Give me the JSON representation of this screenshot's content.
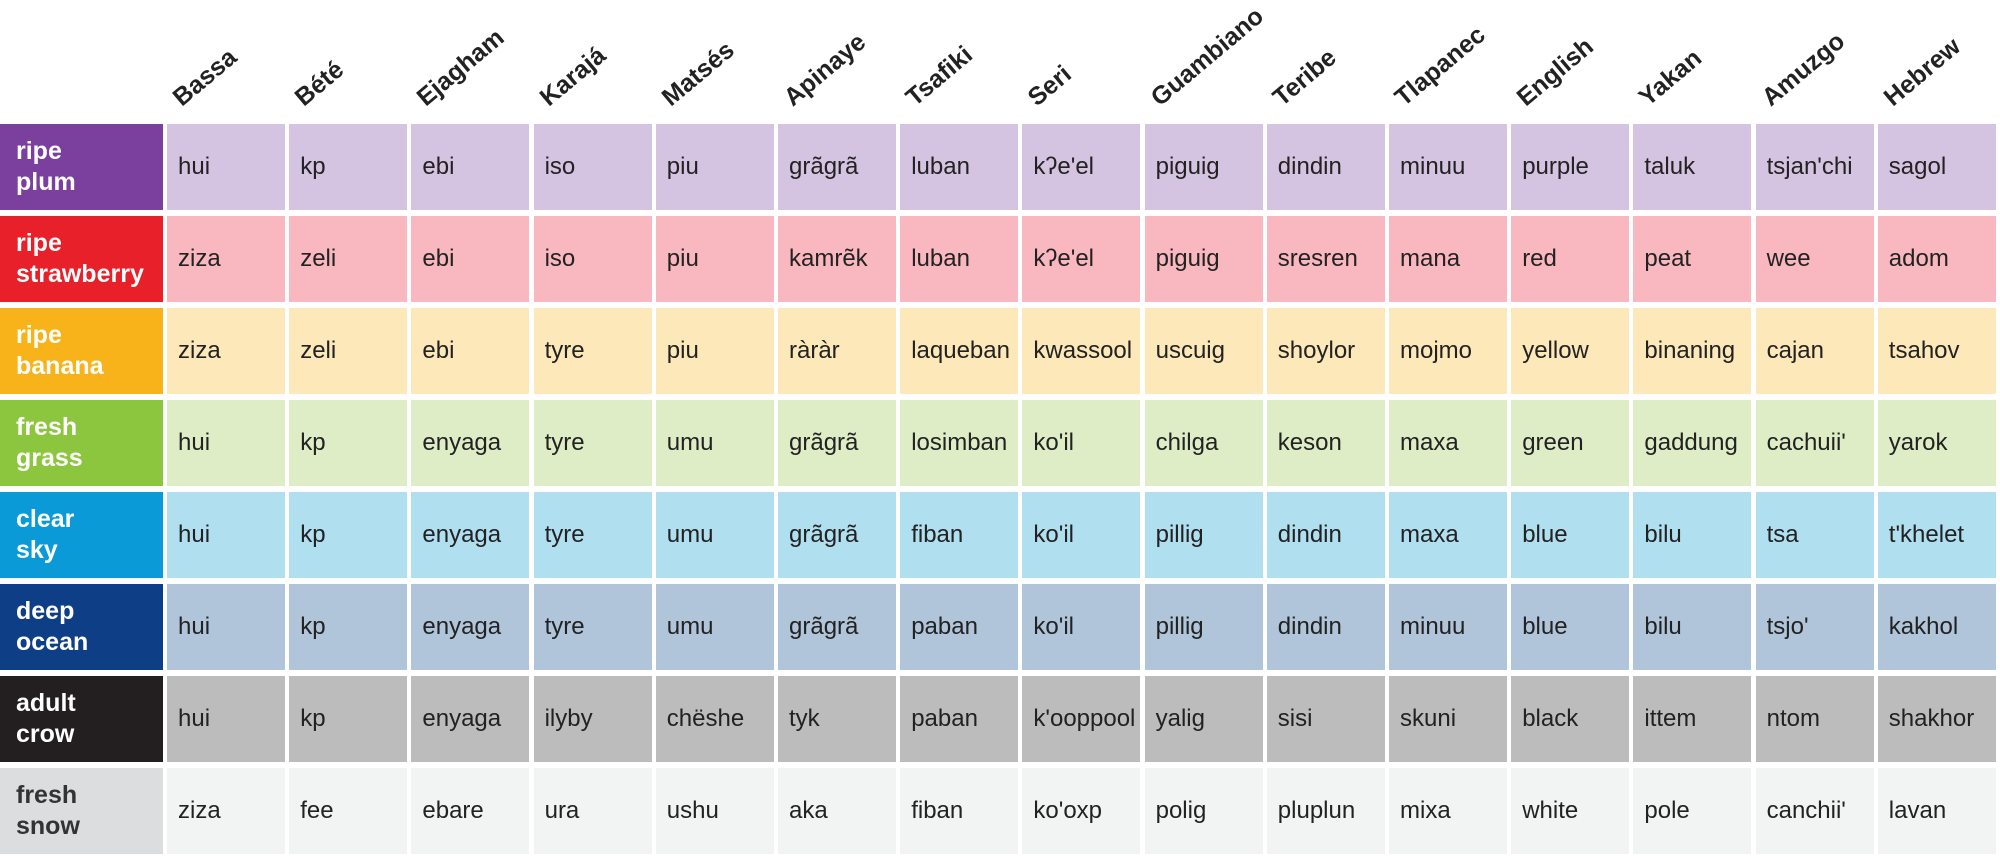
{
  "languages": [
    "Bassa",
    "Bété",
    "Ejagham",
    "Karajá",
    "Matsés",
    "Apinaye",
    "Tsafiki",
    "Seri",
    "Guambiano",
    "Teribe",
    "Tlapanec",
    "English",
    "Yakan",
    "Amuzgo",
    "Hebrew"
  ],
  "rows": [
    {
      "label": "ripe plum",
      "label_color": "#7b3f9e",
      "label_text_color": "#ffffff",
      "cell_color": "#d5c4e1",
      "words": [
        "hui",
        "kp",
        "ebi",
        "iso",
        "piu",
        "grãgrã",
        "luban",
        "kʔe'el",
        "piguig",
        "dindin",
        "minuu",
        "purple",
        "taluk",
        "tsjan'chi",
        "sagol"
      ]
    },
    {
      "label": "ripe strawberry",
      "label_color": "#e8202a",
      "label_text_color": "#ffffff",
      "cell_color": "#f9b8bf",
      "words": [
        "ziza",
        "zeli",
        "ebi",
        "iso",
        "piu",
        "kamrẽk",
        "luban",
        "kʔe'el",
        "piguig",
        "sresren",
        "mana",
        "red",
        "peat",
        "wee",
        "adom"
      ]
    },
    {
      "label": "ripe banana",
      "label_color": "#f8b31a",
      "label_text_color": "#ffffff",
      "cell_color": "#fce8b8",
      "words": [
        "ziza",
        "zeli",
        "ebi",
        "tyre",
        "piu",
        "ràràr",
        "laqueban",
        "kwassool",
        "uscuig",
        "shoylor",
        "mojmo",
        "yellow",
        "binaning",
        "cajan",
        "tsahov"
      ]
    },
    {
      "label": "fresh grass",
      "label_color": "#8cc63f",
      "label_text_color": "#ffffff",
      "cell_color": "#deedc5",
      "words": [
        "hui",
        "kp",
        "enyaga",
        "tyre",
        "umu",
        "grãgrã",
        "losimban",
        "ko'il",
        "chilga",
        "keson",
        "maxa",
        "green",
        "gaddung",
        "cachuii'",
        "yarok"
      ]
    },
    {
      "label": "clear sky",
      "label_color": "#0a9ad8",
      "label_text_color": "#ffffff",
      "cell_color": "#b0dff0",
      "words": [
        "hui",
        "kp",
        "enyaga",
        "tyre",
        "umu",
        "grãgrã",
        "fiban",
        "ko'il",
        "pillig",
        "dindin",
        "maxa",
        "blue",
        "bilu",
        "tsa",
        "t'khelet"
      ]
    },
    {
      "label": "deep ocean",
      "label_color": "#0e3f86",
      "label_text_color": "#ffffff",
      "cell_color": "#b0c5da",
      "words": [
        "hui",
        "kp",
        "enyaga",
        "tyre",
        "umu",
        "grãgrã",
        "paban",
        "ko'il",
        "pillig",
        "dindin",
        "minuu",
        "blue",
        "bilu",
        "tsjo'",
        "kakhol"
      ]
    },
    {
      "label": "adult crow",
      "label_color": "#231f20",
      "label_text_color": "#ffffff",
      "cell_color": "#bdbcbc",
      "words": [
        "hui",
        "kp",
        "enyaga",
        "ilyby",
        "chëshe",
        "tyk",
        "paban",
        "k'ooppool",
        "yalig",
        "sisi",
        "skuni",
        "black",
        "ittem",
        "ntom",
        "shakhor"
      ]
    },
    {
      "label": "fresh snow",
      "label_color": "#dcdddf",
      "label_text_color": "#333333",
      "cell_color": "#f2f3f3",
      "words": [
        "ziza",
        "fee",
        "ebare",
        "ura",
        "ushu",
        "aka",
        "fiban",
        "ko'oxp",
        "polig",
        "pluplun",
        "mixa",
        "white",
        "pole",
        "canchii'",
        "lavan"
      ]
    }
  ]
}
